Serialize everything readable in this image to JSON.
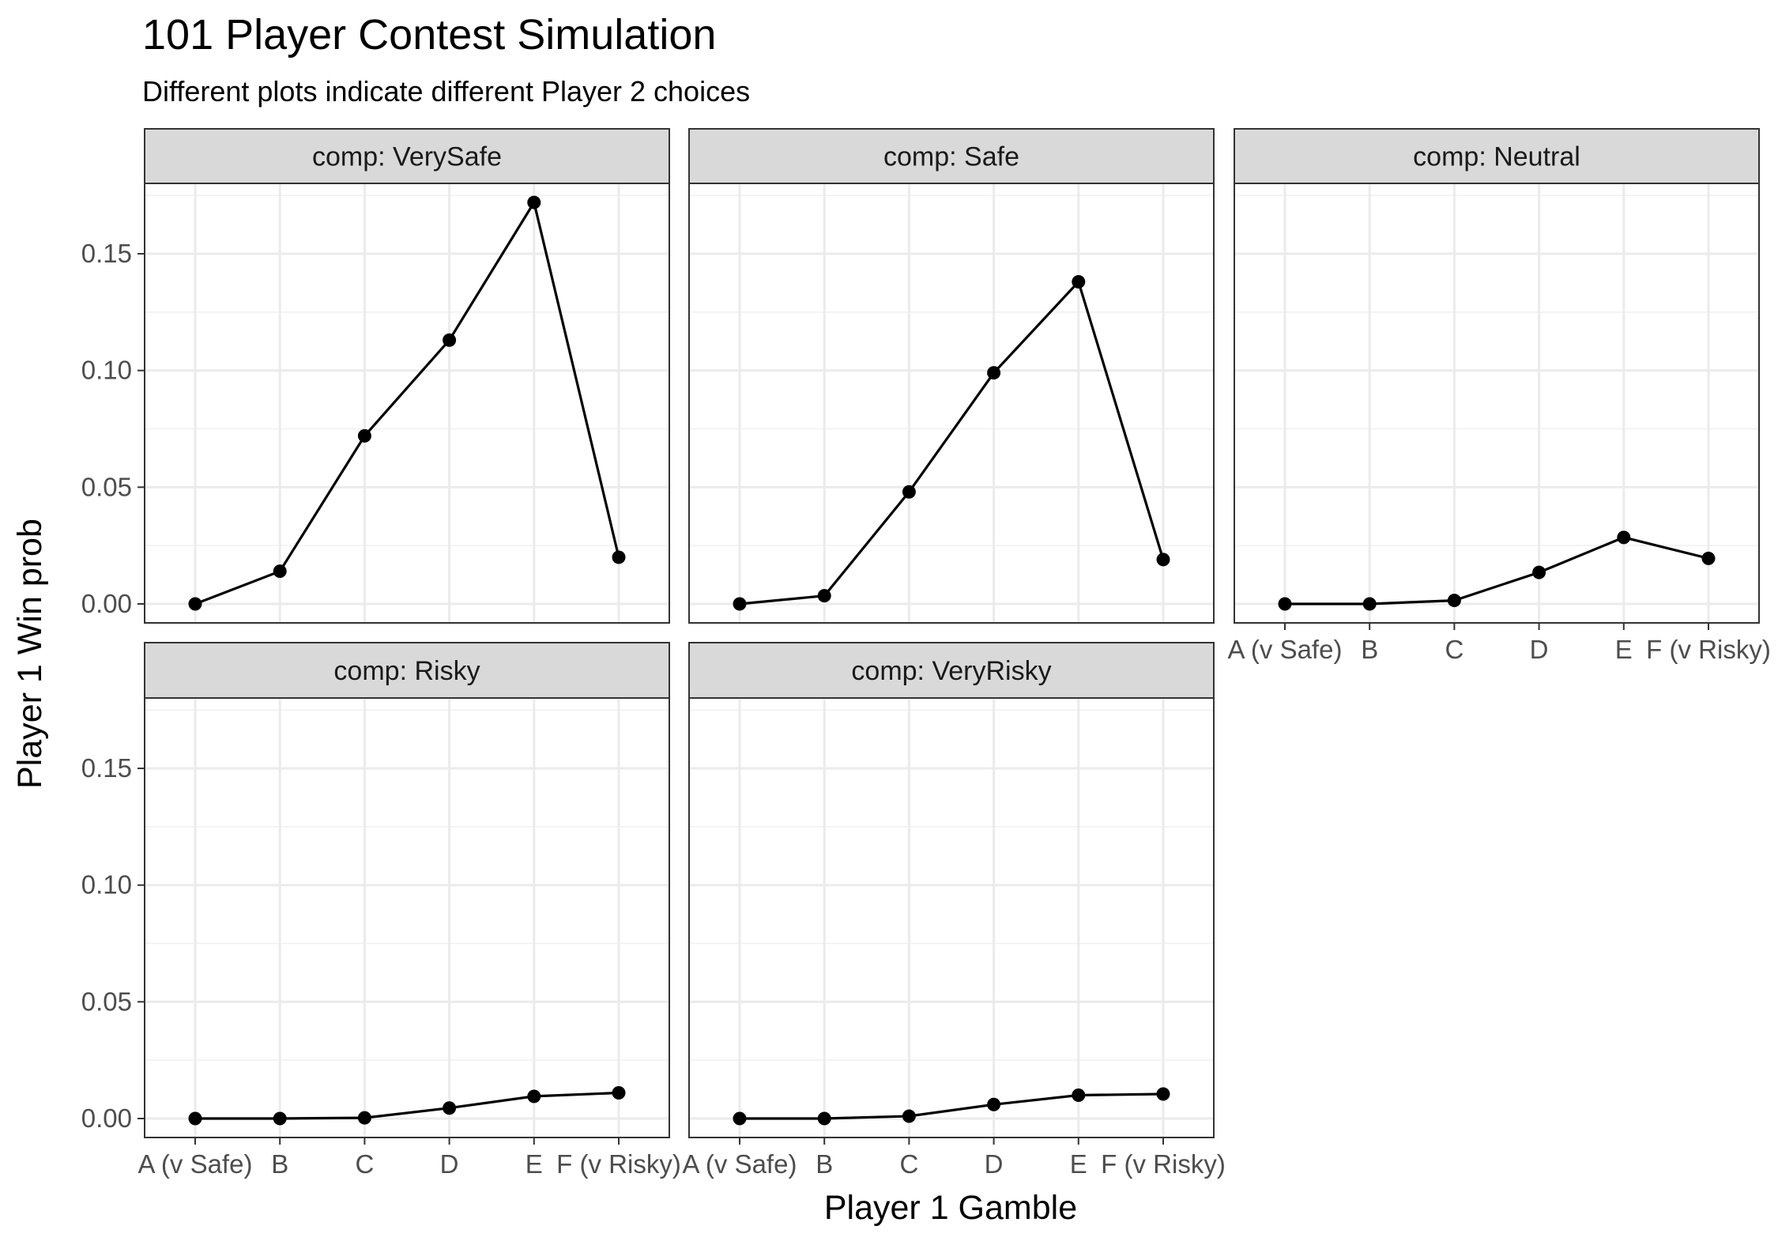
{
  "title": "101 Player Contest Simulation",
  "subtitle": "Different plots indicate different Player 2 choices",
  "chart_data": {
    "type": "line",
    "xlabel": "Player 1 Gamble",
    "ylabel": "Player 1 Win prob",
    "categories": [
      "A (v Safe)",
      "B",
      "C",
      "D",
      "E",
      "F (v Risky)"
    ],
    "ylim": [
      -0.008,
      0.18
    ],
    "yticks": [
      "0.00",
      "0.05",
      "0.10",
      "0.15"
    ],
    "ytick_values": [
      0,
      0.05,
      0.1,
      0.15
    ],
    "grid": true,
    "facet_prefix": "comp: ",
    "panels": [
      {
        "label": "comp: VerySafe",
        "values": [
          0.0,
          0.014,
          0.072,
          0.113,
          0.172,
          0.02
        ]
      },
      {
        "label": "comp: Safe",
        "values": [
          0.0,
          0.0035,
          0.048,
          0.099,
          0.138,
          0.019
        ]
      },
      {
        "label": "comp: Neutral",
        "values": [
          0.0,
          0.0,
          0.0015,
          0.0135,
          0.0285,
          0.0195
        ]
      },
      {
        "label": "comp: Risky",
        "values": [
          0.0,
          0.0,
          0.0003,
          0.0045,
          0.0095,
          0.011
        ]
      },
      {
        "label": "comp: VeryRisky",
        "values": [
          0.0,
          0.0,
          0.001,
          0.006,
          0.01,
          0.0105
        ]
      }
    ]
  }
}
